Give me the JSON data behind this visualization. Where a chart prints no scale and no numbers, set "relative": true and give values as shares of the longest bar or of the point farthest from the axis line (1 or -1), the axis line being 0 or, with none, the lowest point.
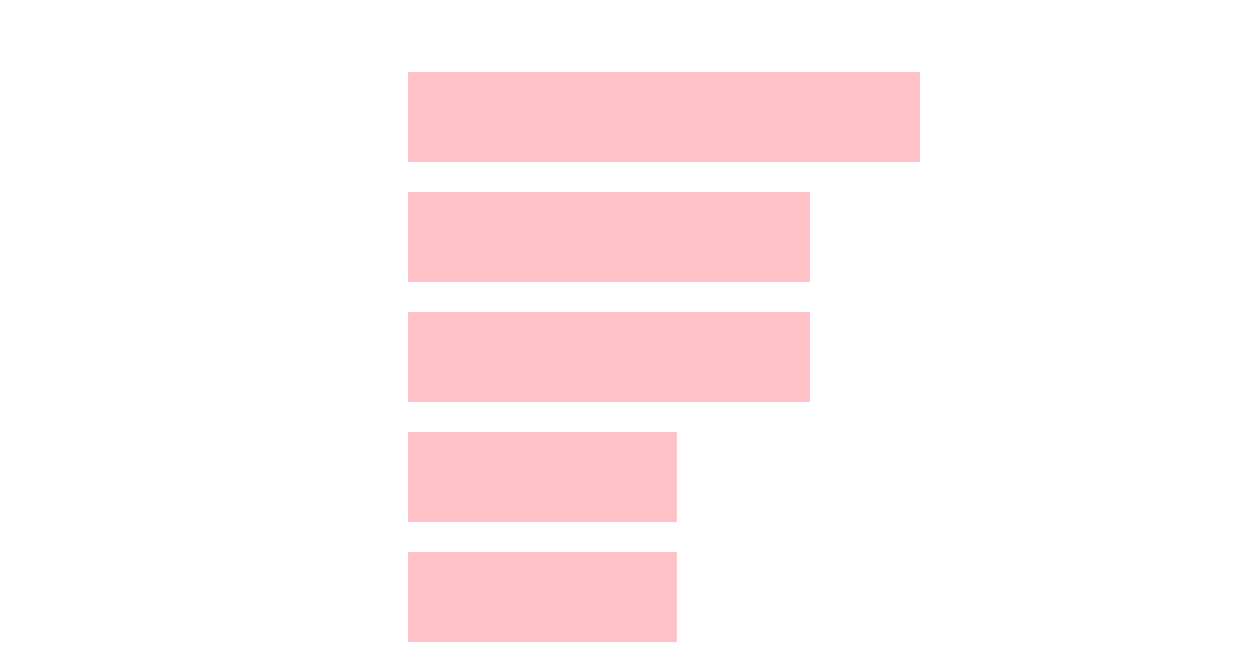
{
  "chart_data": {
    "type": "bar",
    "orientation": "horizontal",
    "relative": true,
    "categories": [
      null,
      null,
      null,
      null,
      null
    ],
    "values": [
      1,
      0.785,
      0.785,
      0.525,
      0.525
    ],
    "color": "#fec1c7"
  }
}
